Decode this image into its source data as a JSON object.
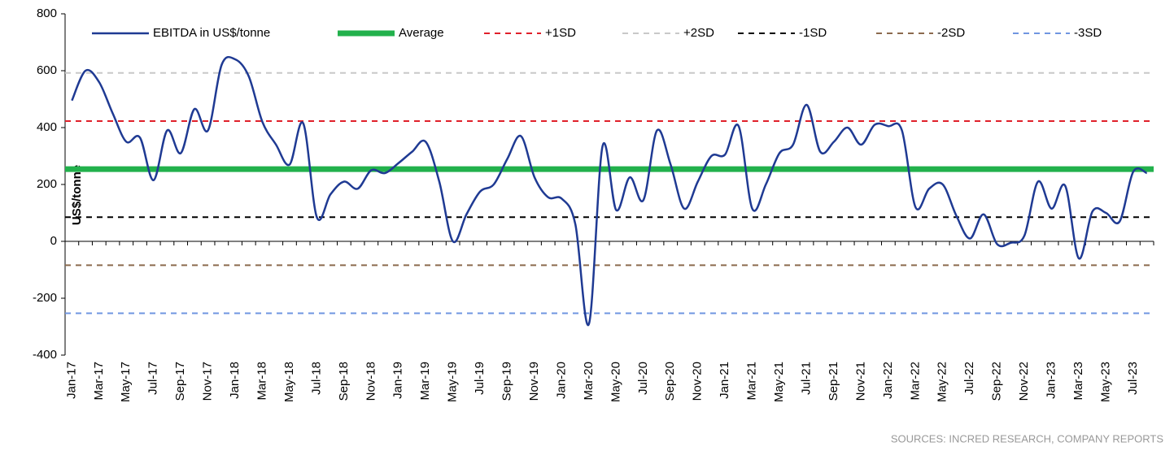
{
  "chart_data": {
    "type": "line",
    "y_label": "US$/tonne",
    "source": "SOURCES: INCRED RESEARCH, COMPANY REPORTS",
    "categories": [
      "Jan-17",
      null,
      "Mar-17",
      null,
      "May-17",
      null,
      "Jul-17",
      null,
      "Sep-17",
      null,
      "Nov-17",
      null,
      "Jan-18",
      null,
      "Mar-18",
      null,
      "May-18",
      null,
      "Jul-18",
      null,
      "Sep-18",
      null,
      "Nov-18",
      null,
      "Jan-19",
      null,
      "Mar-19",
      null,
      "May-19",
      null,
      "Jul-19",
      null,
      "Sep-19",
      null,
      "Nov-19",
      null,
      "Jan-20",
      null,
      "Mar-20",
      null,
      "May-20",
      null,
      "Jul-20",
      null,
      "Sep-20",
      null,
      "Nov-20",
      null,
      "Jan-21",
      null,
      "Mar-21",
      null,
      "May-21",
      null,
      "Jul-21",
      null,
      "Sep-21",
      null,
      "Nov-21",
      null,
      "Jan-22",
      null,
      "Mar-22",
      null,
      "May-22",
      null,
      "Jul-22",
      null,
      "Sep-22",
      null,
      "Nov-22",
      null,
      "Jan-23",
      null,
      "Mar-23",
      null,
      "May-23",
      null,
      "Jul-23",
      null
    ],
    "series": [
      {
        "name": "EBITDA in US$/tonne",
        "color": "#1f3a93",
        "values": [
          495,
          600,
          560,
          450,
          350,
          365,
          215,
          390,
          310,
          465,
          390,
          620,
          640,
          580,
          420,
          340,
          270,
          415,
          85,
          165,
          210,
          185,
          250,
          240,
          275,
          315,
          350,
          210,
          0,
          95,
          175,
          200,
          290,
          370,
          225,
          155,
          150,
          60,
          -290,
          335,
          110,
          225,
          145,
          390,
          270,
          115,
          210,
          300,
          305,
          405,
          115,
          200,
          310,
          340,
          480,
          315,
          350,
          400,
          340,
          410,
          405,
          390,
          120,
          185,
          200,
          90,
          10,
          95,
          -10,
          -5,
          20,
          210,
          115,
          195,
          -60,
          105,
          100,
          70,
          245,
          240
        ]
      }
    ],
    "reference_lines": [
      {
        "name": "Average",
        "value": 254,
        "color": "#22b14c",
        "dashed": false
      },
      {
        "name": "+1SD",
        "value": 423,
        "color": "#e0202a",
        "dashed": true
      },
      {
        "name": "+2SD",
        "value": 592,
        "color": "#c8c8c8",
        "dashed": true
      },
      {
        "name": "-1SD",
        "value": 85,
        "color": "#000000",
        "dashed": true
      },
      {
        "name": "-2SD",
        "value": -84,
        "color": "#8b6a4e",
        "dashed": true
      },
      {
        "name": "-3SD",
        "value": -253,
        "color": "#6f95e0",
        "dashed": true
      }
    ],
    "ylim": [
      -400,
      800
    ],
    "yticks": [
      -400,
      -200,
      0,
      200,
      400,
      600,
      800
    ],
    "legend": "top"
  }
}
